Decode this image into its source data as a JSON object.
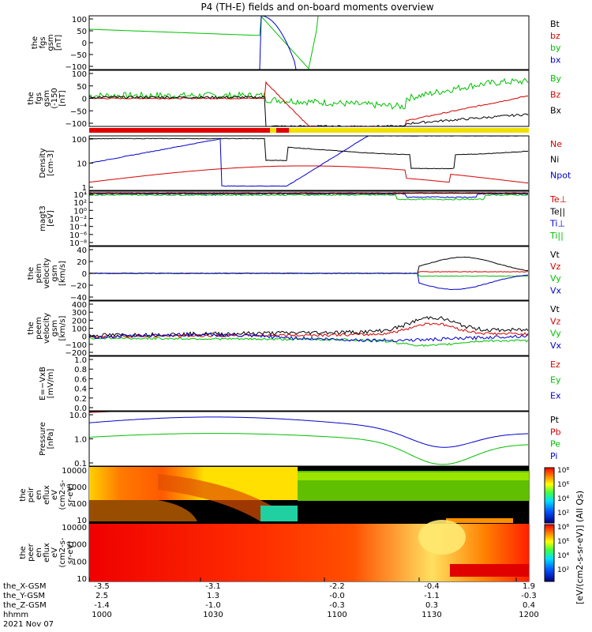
{
  "title": "P4 (TH-E) fields and on-board moments overview",
  "chart_data": {
    "type": "line",
    "panels": [
      {
        "id": "fgs_gsm",
        "ylabel": [
          "the",
          "fgs",
          "gsm",
          "[nT]"
        ],
        "yticks": [
          "100",
          "50",
          "0",
          "−50",
          "−100"
        ],
        "yrange": [
          -100,
          100
        ],
        "legend": [
          {
            "label": "Bt",
            "color": "#000000"
          },
          {
            "label": "bz",
            "color": "#d40000"
          },
          {
            "label": "by",
            "color": "#00c000"
          },
          {
            "label": "bx",
            "color": "#0000cc"
          }
        ]
      },
      {
        "id": "fgs_gsm_zoom",
        "ylabel": [
          "the",
          "fgs",
          "gsm",
          "(-150",
          "[nT]"
        ],
        "yticks": [
          "100",
          "50",
          "0",
          "−50",
          "−100"
        ],
        "yrange": [
          -120,
          120
        ],
        "legend": [
          {
            "label": "By",
            "color": "#00c000"
          },
          {
            "label": "Bz",
            "color": "#d40000"
          },
          {
            "label": "Bx",
            "color": "#000000"
          }
        ]
      },
      {
        "id": "density",
        "ylabel": [
          "Density",
          "[cm-3]"
        ],
        "yticks": [
          "100",
          "10",
          "1"
        ],
        "ylog": true,
        "yrange": [
          1,
          200
        ],
        "legend": [
          {
            "label": "Ne",
            "color": "#d40000"
          },
          {
            "label": "Ni",
            "color": "#000000"
          },
          {
            "label": "Npot",
            "color": "#0000cc"
          }
        ]
      },
      {
        "id": "temperature",
        "ylabel": [
          "magt3",
          "[eV]"
        ],
        "yticks": [
          "10⁴",
          "10²",
          "10⁰",
          "10⁻²",
          "10⁻⁴",
          "10⁻⁶",
          "10⁻⁸"
        ],
        "ylog": true,
        "legend": [
          {
            "label": "Te⊥",
            "color": "#d40000"
          },
          {
            "label": "Te||",
            "color": "#000000"
          },
          {
            "label": "Ti⊥",
            "color": "#0000cc"
          },
          {
            "label": "Ti||",
            "color": "#00c000"
          }
        ]
      },
      {
        "id": "peim_velocity",
        "ylabel": [
          "the",
          "peim",
          "velocity",
          "gsm",
          "[km/s]"
        ],
        "yticks": [
          "40",
          "20",
          "0",
          "−20",
          "−40"
        ],
        "yrange": [
          -40,
          40
        ],
        "legend": [
          {
            "label": "Vt",
            "color": "#000000"
          },
          {
            "label": "Vz",
            "color": "#d40000"
          },
          {
            "label": "Vy",
            "color": "#00c000"
          },
          {
            "label": "Vx",
            "color": "#0000cc"
          }
        ]
      },
      {
        "id": "peem_velocity",
        "ylabel": [
          "the",
          "peem",
          "velocity",
          "gsm",
          "[km/s]"
        ],
        "yticks": [
          "400",
          "300",
          "200",
          "100",
          "0",
          "−100",
          "−200"
        ],
        "yrange": [
          -200,
          400
        ],
        "legend": [
          {
            "label": "Vt",
            "color": "#000000"
          },
          {
            "label": "Vz",
            "color": "#d40000"
          },
          {
            "label": "Vy",
            "color": "#00c000"
          },
          {
            "label": "Vx",
            "color": "#0000cc"
          }
        ]
      },
      {
        "id": "efield",
        "ylabel": [
          "E=−VxB",
          "[mV/m]"
        ],
        "yticks": [
          "1.0",
          "0.8",
          "0.6",
          "0.4",
          "0.2",
          "0.0"
        ],
        "yrange": [
          0,
          1
        ],
        "legend": [
          {
            "label": "Ez",
            "color": "#d40000"
          },
          {
            "label": "Ey",
            "color": "#00c000"
          },
          {
            "label": "Ex",
            "color": "#0000cc"
          }
        ]
      },
      {
        "id": "pressure",
        "ylabel": [
          "Pressure",
          "[nPa]"
        ],
        "yticks": [
          "10.0",
          "1.0",
          "0.1"
        ],
        "ylog": true,
        "yrange": [
          0.05,
          30
        ],
        "legend": [
          {
            "label": "Pt",
            "color": "#000000"
          },
          {
            "label": "Pb",
            "color": "#d40000"
          },
          {
            "label": "Pe",
            "color": "#00c000"
          },
          {
            "label": "Pi",
            "color": "#0000cc"
          }
        ]
      },
      {
        "id": "peir_spectrogram",
        "ylabel": [
          "the",
          "peir",
          "en",
          "eflux",
          "eV",
          "(cm2-s-",
          "sr-eV)"
        ],
        "yticks": [
          "10000",
          "1000",
          "100",
          "10"
        ]
      },
      {
        "id": "peer_spectrogram",
        "ylabel": [
          "the",
          "peer",
          "en",
          "eflux",
          "eV",
          "(cm2-s-",
          "sr-eV)"
        ],
        "yticks": [
          "10000",
          "1000",
          "100",
          "10"
        ]
      }
    ],
    "colorbar": {
      "label": "[eV/(cm2-s-sr-eV)] (All Qs)",
      "ticks_upper": [
        "10⁸",
        "10⁶",
        "10⁴",
        "10²"
      ],
      "ticks_lower": [
        "10⁸",
        "10⁶",
        "10⁴",
        "10²"
      ]
    },
    "x_axis": {
      "row_labels": [
        "the_X-GSM",
        "the_Y-GSM",
        "the_Z-GSM",
        "hhmm",
        "2021 Nov 07"
      ],
      "columns": [
        {
          "x": "-3.5",
          "y": "2.5",
          "z": "-1.4",
          "time": "1000"
        },
        {
          "x": "-3.1",
          "y": "1.3",
          "z": "-1.0",
          "time": "1030"
        },
        {
          "x": "-2.2",
          "y": "-0.0",
          "z": "-0.3",
          "time": "1100"
        },
        {
          "x": "-0.4",
          "y": "-1.1",
          "z": "0.3",
          "time": "1130"
        },
        {
          "x": "1.9",
          "y": "-0.3",
          "z": "0.4",
          "time": "1200"
        }
      ]
    }
  }
}
